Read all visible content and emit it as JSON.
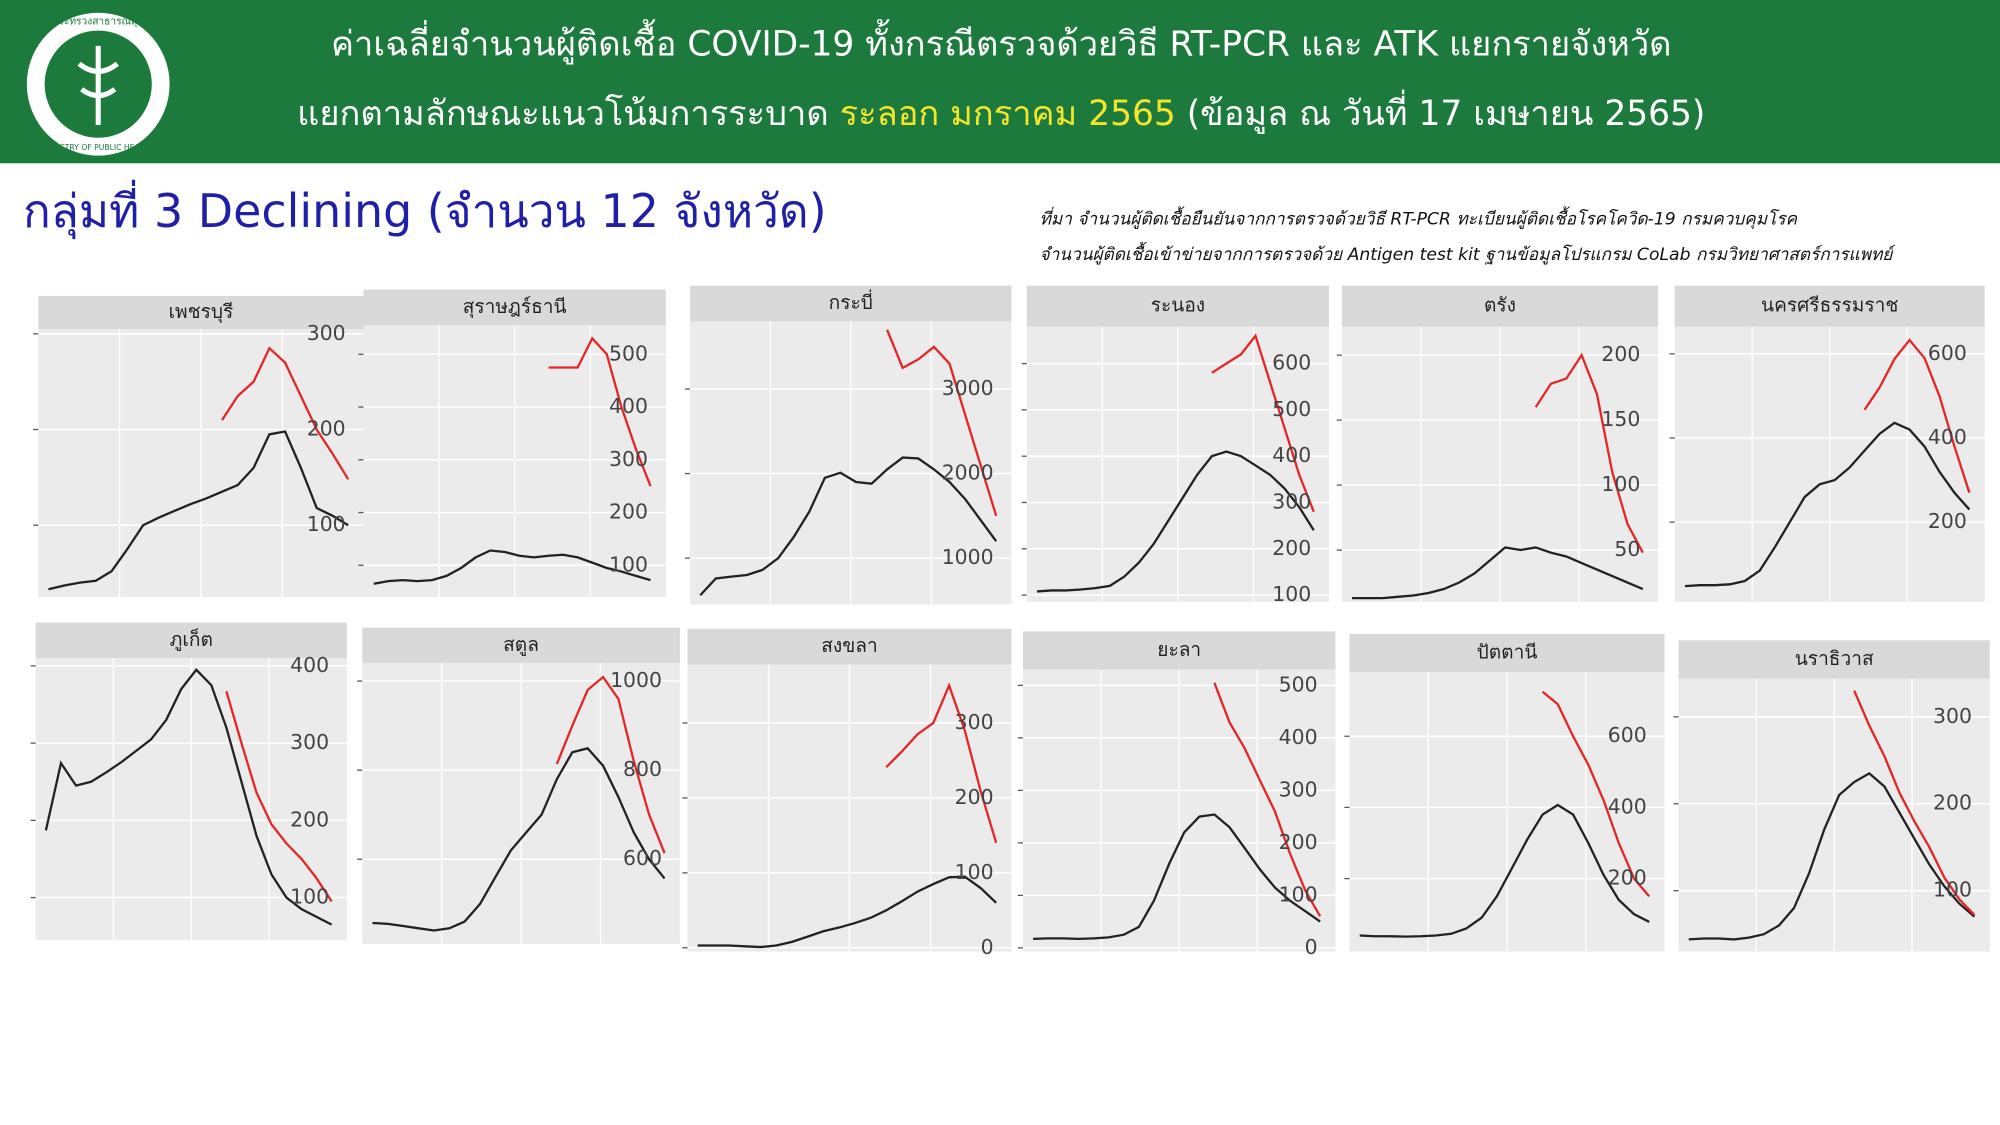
{
  "header": {
    "line1": "ค่าเฉลี่ยจำนวนผู้ติดเชื้อ COVID-19 ทั้งกรณีตรวจด้วยวิธี RT-PCR และ ATK แยกรายจังหวัด",
    "line2_start": "แยกตามลักษณะแนวโน้มการระบาด",
    "line2_highlight": "ระลอก มกราคม 2565",
    "line2_end": "(ข้อมูล ณ วันที่ 17 เมษายน 2565)",
    "logo_top": "กระทรวงสาธารณสุข",
    "logo_bottom": "MINISTRY OF PUBLIC HEALTH"
  },
  "group_title": "กลุ่มที่ 3 Declining (จำนวน 12 จังหวัด)",
  "source": [
    "ที่มา จำนวนผู้ติดเชื้อยืนยันจากการตรวจด้วยวิธี RT-PCR ทะเบียนผู้ติดเชื้อโรคโควิด-19 กรมควบคุมโรค",
    "จำนวนผู้ติดเชื้อเข้าข่ายจากการตรวจด้วย Antigen test kit ฐานข้อมูลโปรแกรม CoLab กรมวิทยาศาสตร์การแพทย์"
  ],
  "chart_data": [
    {
      "type": "line",
      "title": "เพชรบุรี",
      "ylim": [
        25,
        305
      ],
      "yticks": [
        100,
        200,
        300
      ],
      "grid": true,
      "series": [
        {
          "color": "#222222",
          "values": [
            33,
            37,
            40,
            42,
            52,
            75,
            100,
            108,
            115,
            122,
            128,
            135,
            142,
            160,
            195,
            198,
            160,
            118,
            110,
            100
          ]
        },
        {
          "color": "#e32626",
          "values": [
            null,
            null,
            null,
            null,
            null,
            null,
            null,
            null,
            null,
            null,
            null,
            210,
            235,
            250,
            285,
            270,
            235,
            200,
            175,
            148
          ]
        }
      ]
    },
    {
      "type": "line",
      "title": "สุราษฎร์ธานี",
      "ylim": [
        40,
        555
      ],
      "yticks": [
        100,
        200,
        300,
        400,
        500
      ],
      "grid": true,
      "series": [
        {
          "color": "#222222",
          "values": [
            65,
            70,
            72,
            70,
            72,
            80,
            95,
            115,
            128,
            125,
            118,
            115,
            118,
            120,
            115,
            105,
            95,
            88,
            80,
            72
          ]
        },
        {
          "color": "#e32626",
          "values": [
            null,
            null,
            null,
            null,
            null,
            null,
            null,
            null,
            null,
            null,
            null,
            null,
            475,
            475,
            475,
            530,
            500,
            400,
            320,
            250
          ]
        }
      ]
    },
    {
      "type": "line",
      "title": "กระบี่",
      "ylim": [
        450,
        3800
      ],
      "yticks": [
        1000,
        2000,
        3000
      ],
      "grid": true,
      "series": [
        {
          "color": "#222222",
          "values": [
            560,
            760,
            780,
            800,
            860,
            1000,
            1250,
            1550,
            1950,
            2010,
            1900,
            1880,
            2050,
            2190,
            2180,
            2050,
            1900,
            1700,
            1450,
            1200
          ]
        },
        {
          "color": "#e32626",
          "values": [
            null,
            null,
            null,
            null,
            null,
            null,
            null,
            null,
            null,
            null,
            null,
            null,
            3700,
            3250,
            3350,
            3500,
            3300,
            2700,
            2100,
            1500
          ]
        }
      ]
    },
    {
      "type": "line",
      "title": "ระนอง",
      "ylim": [
        85,
        680
      ],
      "yticks": [
        100,
        200,
        300,
        400,
        500,
        600
      ],
      "grid": true,
      "series": [
        {
          "color": "#222222",
          "values": [
            108,
            110,
            110,
            112,
            115,
            120,
            140,
            170,
            210,
            260,
            310,
            360,
            400,
            410,
            400,
            380,
            360,
            330,
            290,
            240
          ]
        },
        {
          "color": "#e32626",
          "values": [
            null,
            null,
            null,
            null,
            null,
            null,
            null,
            null,
            null,
            null,
            null,
            null,
            580,
            600,
            620,
            660,
            560,
            460,
            360,
            280
          ]
        }
      ]
    },
    {
      "type": "line",
      "title": "ตรัง",
      "ylim": [
        10,
        222
      ],
      "yticks": [
        50,
        100,
        150,
        200
      ],
      "grid": true,
      "series": [
        {
          "color": "#222222",
          "values": [
            13,
            13,
            13,
            14,
            15,
            17,
            20,
            25,
            32,
            42,
            52,
            50,
            52,
            48,
            45,
            40,
            35,
            30,
            25,
            20
          ]
        },
        {
          "color": "#e32626",
          "values": [
            null,
            null,
            null,
            null,
            null,
            null,
            null,
            null,
            null,
            null,
            null,
            null,
            160,
            178,
            182,
            200,
            170,
            110,
            70,
            48
          ]
        }
      ]
    },
    {
      "type": "line",
      "title": "นครศรีธรรมราช",
      "ylim": [
        10,
        665
      ],
      "yticks": [
        200,
        400,
        600
      ],
      "grid": true,
      "series": [
        {
          "color": "#222222",
          "values": [
            48,
            50,
            50,
            52,
            60,
            85,
            140,
            200,
            260,
            290,
            300,
            330,
            370,
            410,
            436,
            420,
            380,
            320,
            270,
            230
          ]
        },
        {
          "color": "#e32626",
          "values": [
            null,
            null,
            null,
            null,
            null,
            null,
            null,
            null,
            null,
            null,
            null,
            null,
            467,
            520,
            588,
            633,
            590,
            500,
            380,
            270
          ]
        }
      ]
    },
    {
      "type": "line",
      "title": "ภูเก็ต",
      "ylim": [
        45,
        410
      ],
      "yticks": [
        100,
        200,
        300,
        400
      ],
      "grid": true,
      "series": [
        {
          "color": "#222222",
          "values": [
            187,
            274,
            245,
            250,
            262,
            275,
            290,
            305,
            330,
            370,
            395,
            375,
            320,
            250,
            180,
            130,
            100,
            85,
            75,
            65
          ]
        },
        {
          "color": "#e32626",
          "values": [
            null,
            null,
            null,
            null,
            null,
            null,
            null,
            null,
            null,
            null,
            null,
            null,
            367,
            300,
            236,
            195,
            170,
            150,
            125,
            95
          ]
        }
      ]
    },
    {
      "type": "line",
      "title": "สตูล",
      "ylim": [
        410,
        1040
      ],
      "yticks": [
        600,
        800,
        1000
      ],
      "grid": true,
      "series": [
        {
          "color": "#222222",
          "values": [
            457,
            455,
            450,
            445,
            440,
            445,
            460,
            500,
            560,
            620,
            660,
            700,
            780,
            840,
            849,
            810,
            740,
            660,
            600,
            557
          ]
        },
        {
          "color": "#e32626",
          "values": [
            null,
            null,
            null,
            null,
            null,
            null,
            null,
            null,
            null,
            null,
            null,
            null,
            814,
            900,
            980,
            1009,
            960,
            820,
            700,
            614
          ]
        }
      ]
    },
    {
      "type": "line",
      "title": "สงขลา",
      "ylim": [
        -5,
        378
      ],
      "yticks": [
        0,
        100,
        200,
        300
      ],
      "grid": true,
      "series": [
        {
          "color": "#222222",
          "values": [
            3,
            3,
            3,
            2,
            1,
            3,
            8,
            15,
            22,
            27,
            33,
            40,
            50,
            62,
            75,
            85,
            94,
            95,
            80,
            60
          ]
        },
        {
          "color": "#e32626",
          "values": [
            null,
            null,
            null,
            null,
            null,
            null,
            null,
            null,
            null,
            null,
            null,
            null,
            241,
            262,
            285,
            300,
            350,
            290,
            210,
            140
          ]
        }
      ]
    },
    {
      "type": "line",
      "title": "ยะลา",
      "ylim": [
        -7,
        530
      ],
      "yticks": [
        0,
        100,
        200,
        300,
        400,
        500
      ],
      "grid": true,
      "series": [
        {
          "color": "#222222",
          "values": [
            17,
            18,
            18,
            17,
            18,
            20,
            25,
            40,
            90,
            160,
            220,
            250,
            254,
            230,
            190,
            150,
            115,
            90,
            70,
            50
          ]
        },
        {
          "color": "#e32626",
          "values": [
            null,
            null,
            null,
            null,
            null,
            null,
            null,
            null,
            null,
            null,
            null,
            null,
            505,
            430,
            380,
            320,
            260,
            180,
            110,
            60
          ]
        }
      ]
    },
    {
      "type": "line",
      "title": "ปัตตานี",
      "ylim": [
        -5,
        780
      ],
      "yticks": [
        200,
        400,
        600
      ],
      "grid": true,
      "series": [
        {
          "color": "#222222",
          "values": [
            40,
            38,
            38,
            37,
            38,
            40,
            45,
            60,
            90,
            150,
            230,
            310,
            380,
            407,
            380,
            300,
            210,
            140,
            100,
            78
          ]
        },
        {
          "color": "#e32626",
          "values": [
            null,
            null,
            null,
            null,
            null,
            null,
            null,
            null,
            null,
            null,
            null,
            null,
            725,
            690,
            600,
            520,
            420,
            300,
            200,
            150
          ]
        }
      ]
    },
    {
      "type": "line",
      "title": "นราธิวาส",
      "ylim": [
        30,
        344
      ],
      "yticks": [
        100,
        200,
        300
      ],
      "grid": true,
      "series": [
        {
          "color": "#222222",
          "values": [
            44,
            45,
            45,
            44,
            46,
            50,
            60,
            80,
            120,
            170,
            210,
            225,
            235,
            220,
            190,
            160,
            130,
            105,
            85,
            70
          ]
        },
        {
          "color": "#e32626",
          "values": [
            null,
            null,
            null,
            null,
            null,
            null,
            null,
            null,
            null,
            null,
            null,
            330,
            290,
            255,
            213,
            180,
            150,
            115,
            90,
            72
          ]
        }
      ]
    }
  ]
}
